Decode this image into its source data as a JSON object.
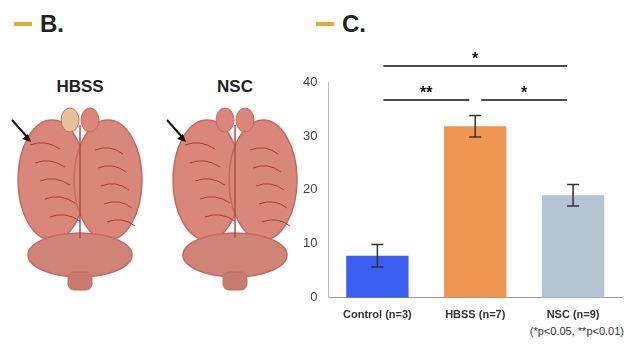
{
  "panel_b": {
    "label": "B.",
    "image_labels": [
      "HBSS",
      "NSC"
    ]
  },
  "chart_data": {
    "type": "bar",
    "panel_label": "C.",
    "categories": [
      "Control (n=3)",
      "HBSS (n=7)",
      "NSC (n=9)"
    ],
    "values": [
      7.8,
      31.8,
      19.0
    ],
    "errors": [
      2.1,
      2.0,
      2.0
    ],
    "colors": [
      "#3b5ff2",
      "#f0954f",
      "#b5c4d1"
    ],
    "ylim": [
      0,
      40
    ],
    "yticks": [
      0,
      10,
      20,
      30,
      40
    ],
    "grid": false,
    "significance": [
      {
        "between": [
          "Control (n=3)",
          "HBSS (n=7)"
        ],
        "label": "**"
      },
      {
        "between": [
          "HBSS (n=7)",
          "NSC (n=9)"
        ],
        "label": "*"
      },
      {
        "between": [
          "Control (n=3)",
          "NSC (n=9)"
        ],
        "label": "*"
      }
    ],
    "footnote": "(*p<0.05, **p<0.01)"
  }
}
